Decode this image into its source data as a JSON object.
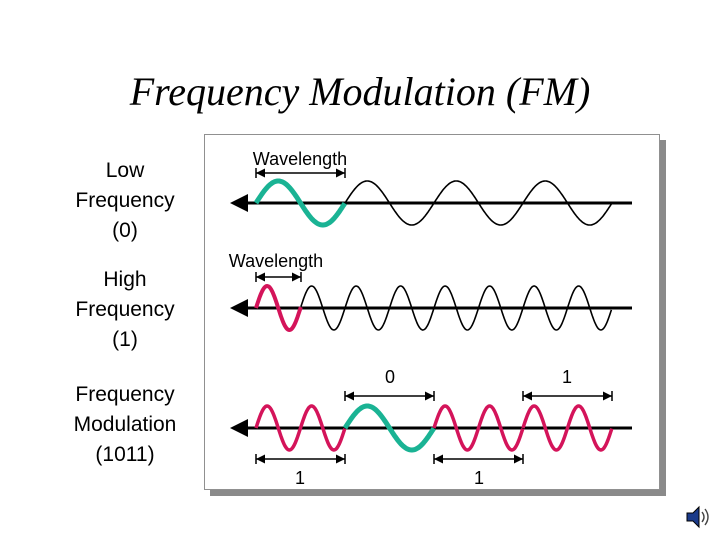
{
  "title": "Frequency Modulation (FM)",
  "rows": {
    "low": {
      "label_lines": [
        "Low",
        "Frequency",
        "(0)"
      ],
      "measure_label": "Wavelength"
    },
    "high": {
      "label_lines": [
        "High",
        "Frequency",
        "(1)"
      ],
      "measure_label": "Wavelength"
    },
    "fm": {
      "label_lines": [
        "Frequency",
        "Modulation",
        "(1011)"
      ],
      "bits": [
        "1",
        "0",
        "1",
        "1"
      ]
    }
  },
  "colors": {
    "highlight_low": "#1ab394",
    "highlight_high": "#d4145a",
    "wave": "#000000"
  },
  "icons": {
    "speaker": "speaker-icon"
  }
}
